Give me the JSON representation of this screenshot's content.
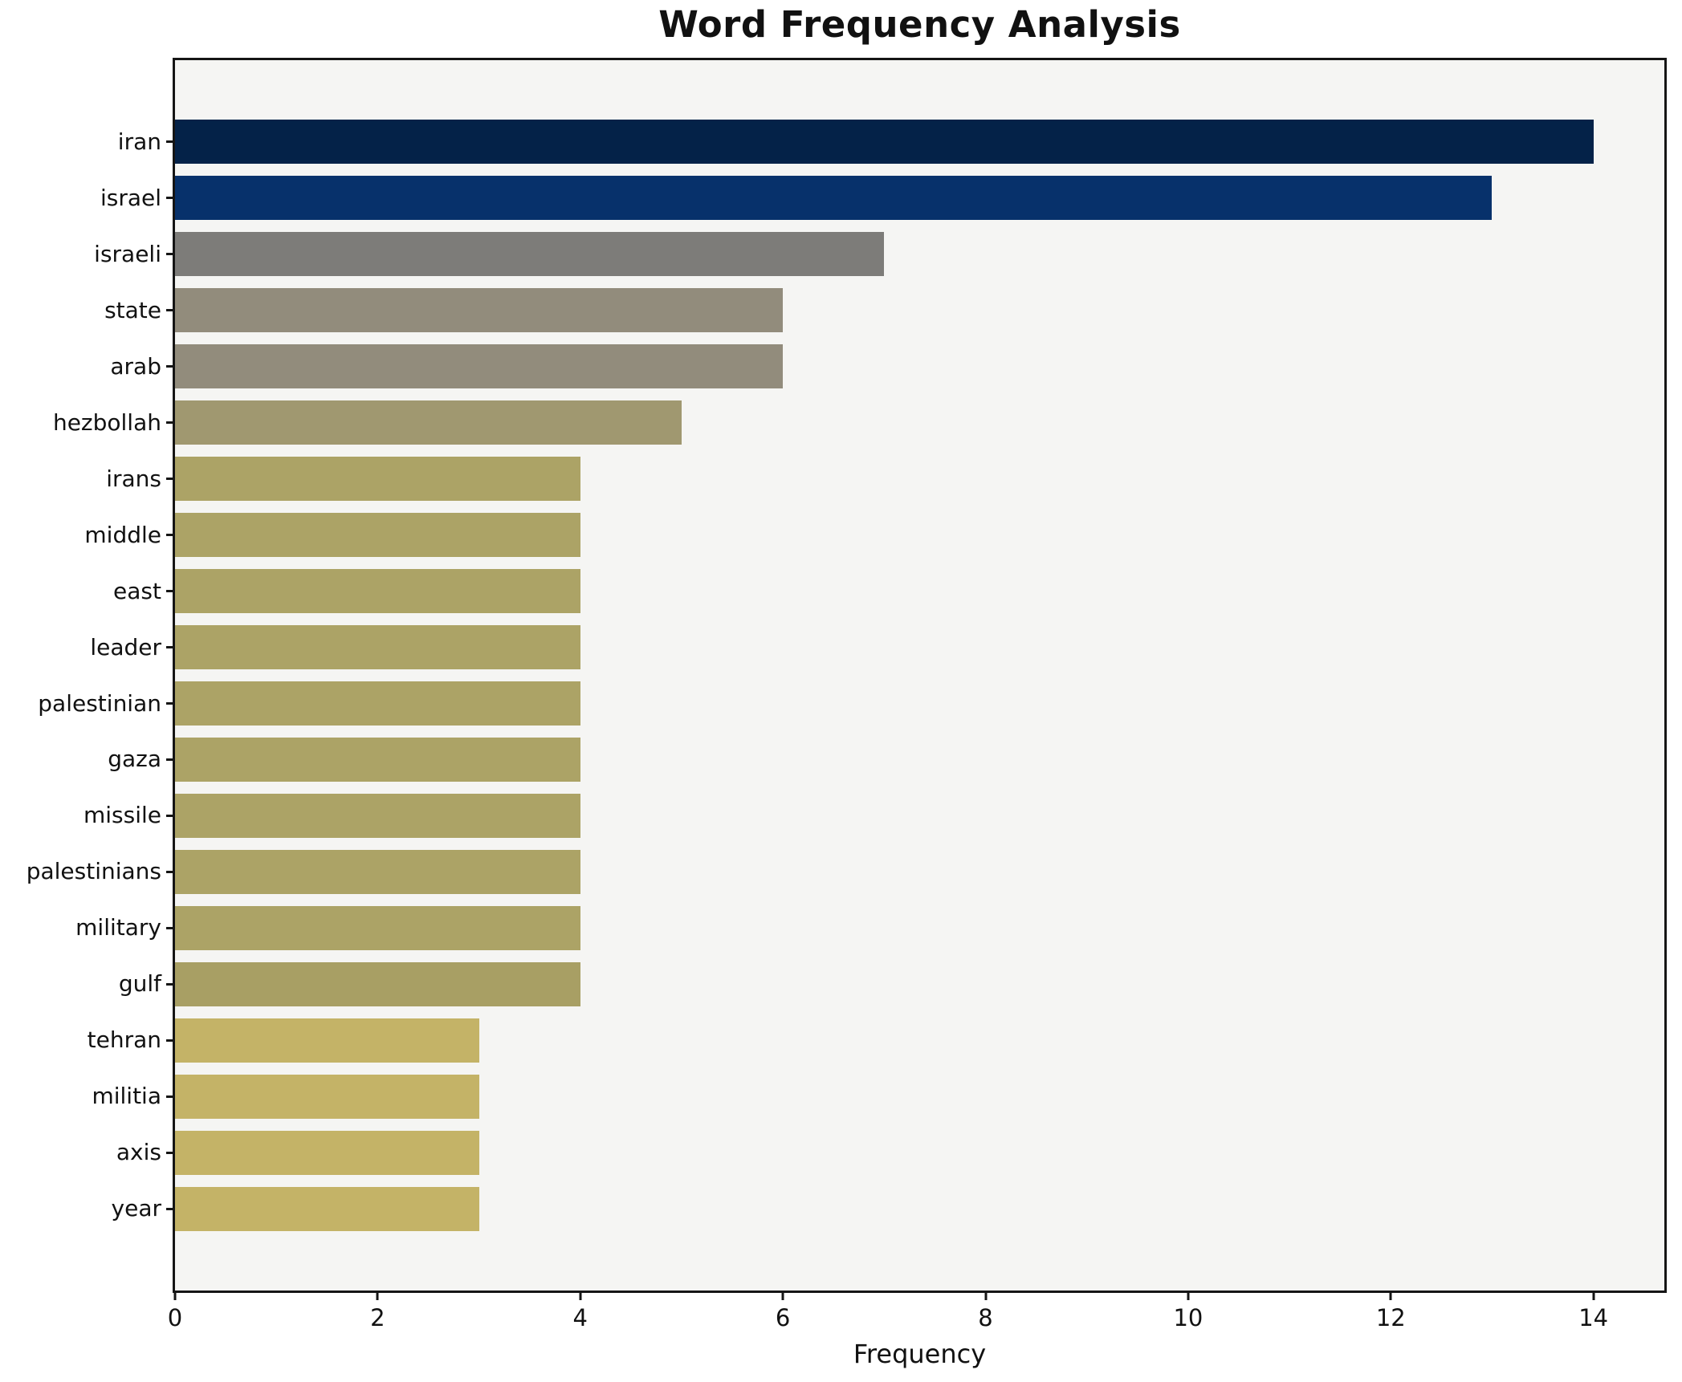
{
  "chart_data": {
    "type": "bar",
    "orientation": "horizontal",
    "title": "Word Frequency Analysis",
    "xlabel": "Frequency",
    "ylabel": "",
    "xlim": [
      0,
      14.7
    ],
    "xticks": [
      0,
      2,
      4,
      6,
      8,
      10,
      12,
      14
    ],
    "grid": false,
    "legend": "none",
    "plot_background": "#f5f5f3",
    "spine_color": "#151515",
    "text_color": "#111111",
    "categories": [
      "iran",
      "israel",
      "israeli",
      "state",
      "arab",
      "hezbollah",
      "irans",
      "middle",
      "east",
      "leader",
      "palestinian",
      "gaza",
      "missile",
      "palestinians",
      "military",
      "gulf",
      "tehran",
      "militia",
      "axis",
      "year"
    ],
    "values": [
      14,
      13,
      7,
      6,
      6,
      5,
      4,
      4,
      4,
      4,
      4,
      4,
      4,
      4,
      4,
      4,
      3,
      3,
      3,
      3
    ],
    "bar_colors": [
      "#042248",
      "#07316b",
      "#7d7c79",
      "#928c7c",
      "#928c7c",
      "#a09870",
      "#aca366",
      "#aca366",
      "#aca366",
      "#aca366",
      "#aca366",
      "#aca366",
      "#aca366",
      "#aca366",
      "#aca366",
      "#a89f64",
      "#c4b367",
      "#c4b367",
      "#c4b367",
      "#c4b367"
    ]
  }
}
